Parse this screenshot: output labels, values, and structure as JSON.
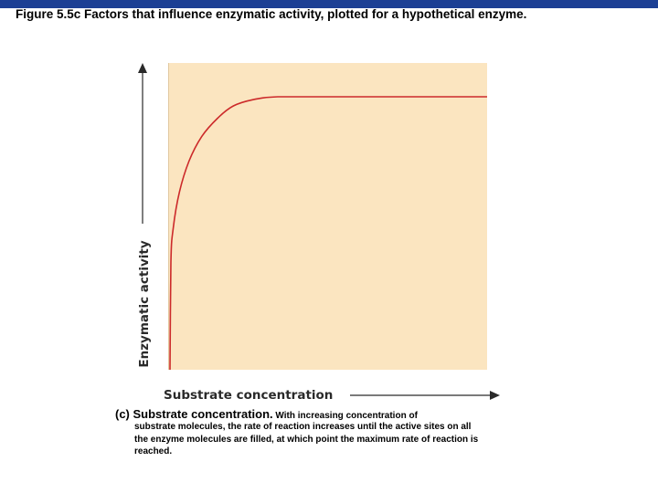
{
  "header": {
    "title": "Figure 5.5c Factors that influence enzymatic activity, plotted for a hypothetical enzyme."
  },
  "caption": {
    "label": "(c) Substrate concentration.",
    "lead": " With increasing concentration of",
    "body": "substrate molecules, the rate of reaction increases until the active sites on all the enzyme molecules are filled, at which point the maximum rate of reaction is reached."
  },
  "chart_data": {
    "type": "line",
    "title": "",
    "xlabel": "Substrate concentration",
    "ylabel": "Enzymatic activity",
    "xlim": [
      0,
      1
    ],
    "ylim": [
      0,
      1
    ],
    "grid": false,
    "series": [
      {
        "values": [
          {
            "x": 0.0,
            "y": 0.0
          },
          {
            "x": 0.003,
            "y": 0.35
          },
          {
            "x": 0.01,
            "y": 0.46
          },
          {
            "x": 0.03,
            "y": 0.58
          },
          {
            "x": 0.06,
            "y": 0.68
          },
          {
            "x": 0.1,
            "y": 0.76
          },
          {
            "x": 0.15,
            "y": 0.82
          },
          {
            "x": 0.2,
            "y": 0.86
          },
          {
            "x": 0.26,
            "y": 0.88
          },
          {
            "x": 0.34,
            "y": 0.89
          },
          {
            "x": 0.5,
            "y": 0.89
          },
          {
            "x": 0.75,
            "y": 0.89
          },
          {
            "x": 1.0,
            "y": 0.89
          }
        ]
      }
    ],
    "colors": {
      "plot_background": "#fbe5c0",
      "line": "#cc2a2a",
      "axis": "#2a2a2a"
    }
  }
}
